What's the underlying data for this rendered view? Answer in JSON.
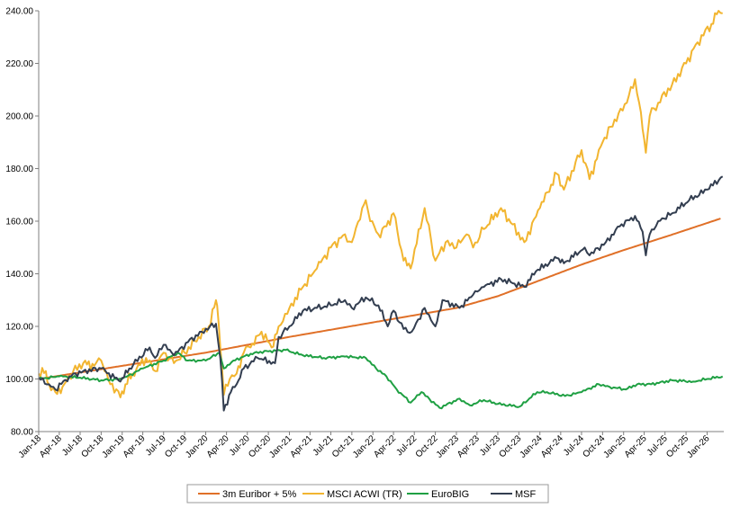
{
  "chart_data": {
    "type": "line",
    "title": "",
    "xlabel": "",
    "ylabel": "",
    "ylim": [
      80,
      240
    ],
    "yticks": [
      "80.00",
      "100.00",
      "120.00",
      "140.00",
      "160.00",
      "180.00",
      "200.00",
      "220.00",
      "240.00"
    ],
    "xticks": [
      "Jan-18",
      "Apr-18",
      "Jul-18",
      "Oct-18",
      "Jan-19",
      "Apr-19",
      "Jul-19",
      "Oct-19",
      "Jan-20",
      "Apr-20",
      "Jul-20",
      "Oct-20",
      "Jan-21",
      "Apr-21",
      "Jul-21",
      "Oct-21",
      "Jan-22",
      "Apr-22",
      "Jul-22",
      "Oct-22",
      "Jan-23",
      "Apr-23",
      "Jul-23",
      "Oct-23",
      "Jan-24",
      "Apr-24",
      "Jul-24",
      "Oct-24",
      "Jan-25",
      "Apr-25",
      "Jul-25",
      "Oct-25",
      "Jan-26"
    ],
    "grid": false,
    "legend_position": "bottom",
    "colors": {
      "axis": "#7f7f7f"
    },
    "series": [
      {
        "name": "3m Euribor + 5%",
        "color": "#e07028",
        "points": [
          [
            "2018-01-01",
            100
          ],
          [
            "2019-01-01",
            105
          ],
          [
            "2020-01-01",
            110
          ],
          [
            "2021-01-01",
            116
          ],
          [
            "2022-01-01",
            121.5
          ],
          [
            "2023-01-01",
            127
          ],
          [
            "2023-07-01",
            131.5
          ],
          [
            "2024-01-01",
            137.5
          ],
          [
            "2024-07-01",
            143.5
          ],
          [
            "2025-01-01",
            149
          ],
          [
            "2025-07-01",
            154
          ],
          [
            "2026-03-01",
            161
          ]
        ]
      },
      {
        "name": "MSCI ACWI (TR)",
        "color": "#f2b530",
        "points": [
          [
            "2018-01-01",
            102
          ],
          [
            "2018-02-01",
            103
          ],
          [
            "2018-02-15",
            98
          ],
          [
            "2018-03-15",
            95
          ],
          [
            "2018-04-15",
            97
          ],
          [
            "2018-06-01",
            103
          ],
          [
            "2018-07-15",
            106
          ],
          [
            "2018-09-01",
            105
          ],
          [
            "2018-10-01",
            107
          ],
          [
            "2018-11-01",
            100
          ],
          [
            "2018-12-24",
            93
          ],
          [
            "2019-01-15",
            98
          ],
          [
            "2019-02-15",
            102
          ],
          [
            "2019-04-15",
            108
          ],
          [
            "2019-05-25",
            103
          ],
          [
            "2019-07-01",
            110
          ],
          [
            "2019-08-15",
            106
          ],
          [
            "2019-10-01",
            110
          ],
          [
            "2019-12-01",
            116
          ],
          [
            "2020-01-15",
            120
          ],
          [
            "2020-02-15",
            130
          ],
          [
            "2020-02-20",
            128
          ],
          [
            "2020-03-05",
            112
          ],
          [
            "2020-03-20",
            94
          ],
          [
            "2020-04-15",
            100
          ],
          [
            "2020-05-15",
            102
          ],
          [
            "2020-06-15",
            110
          ],
          [
            "2020-07-15",
            112
          ],
          [
            "2020-09-01",
            118
          ],
          [
            "2020-10-15",
            112
          ],
          [
            "2020-11-15",
            120
          ],
          [
            "2021-01-01",
            127
          ],
          [
            "2021-03-01",
            135
          ],
          [
            "2021-05-01",
            142
          ],
          [
            "2021-07-01",
            150
          ],
          [
            "2021-09-01",
            155
          ],
          [
            "2021-10-01",
            152
          ],
          [
            "2021-11-15",
            165
          ],
          [
            "2021-12-01",
            168
          ],
          [
            "2021-12-20",
            160
          ],
          [
            "2022-01-25",
            155
          ],
          [
            "2022-03-01",
            158
          ],
          [
            "2022-04-01",
            163
          ],
          [
            "2022-05-15",
            145
          ],
          [
            "2022-06-15",
            142
          ],
          [
            "2022-08-15",
            165
          ],
          [
            "2022-10-01",
            145
          ],
          [
            "2022-11-15",
            152
          ],
          [
            "2023-01-01",
            150
          ],
          [
            "2023-02-15",
            155
          ],
          [
            "2023-03-15",
            150
          ],
          [
            "2023-05-01",
            157
          ],
          [
            "2023-07-15",
            165
          ],
          [
            "2023-10-25",
            152
          ],
          [
            "2024-01-01",
            165
          ],
          [
            "2024-03-15",
            178
          ],
          [
            "2024-04-15",
            172
          ],
          [
            "2024-07-01",
            187
          ],
          [
            "2024-08-05",
            176
          ],
          [
            "2024-10-01",
            190
          ],
          [
            "2024-12-10",
            201
          ],
          [
            "2025-01-15",
            205
          ],
          [
            "2025-02-20",
            214
          ],
          [
            "2025-03-10",
            205
          ],
          [
            "2025-03-25",
            195
          ],
          [
            "2025-04-08",
            186
          ],
          [
            "2025-04-25",
            200
          ],
          [
            "2025-06-01",
            205
          ],
          [
            "2025-08-01",
            212
          ],
          [
            "2025-10-01",
            220
          ],
          [
            "2025-11-20",
            228
          ],
          [
            "2026-01-20",
            235
          ],
          [
            "2026-02-20",
            240
          ],
          [
            "2026-03-10",
            239
          ]
        ]
      },
      {
        "name": "EuroBIG",
        "color": "#1fa043",
        "points": [
          [
            "2018-01-01",
            100
          ],
          [
            "2018-04-01",
            101
          ],
          [
            "2018-07-01",
            100.5
          ],
          [
            "2018-10-01",
            99.5
          ],
          [
            "2019-01-01",
            100
          ],
          [
            "2019-04-01",
            104
          ],
          [
            "2019-07-01",
            107
          ],
          [
            "2019-09-01",
            110
          ],
          [
            "2019-10-15",
            107
          ],
          [
            "2020-01-01",
            107
          ],
          [
            "2020-03-01",
            110
          ],
          [
            "2020-03-20",
            104
          ],
          [
            "2020-05-01",
            107
          ],
          [
            "2020-08-01",
            110
          ],
          [
            "2020-10-01",
            110.5
          ],
          [
            "2020-12-15",
            111
          ],
          [
            "2021-03-01",
            109
          ],
          [
            "2021-06-01",
            108
          ],
          [
            "2021-09-01",
            108.5
          ],
          [
            "2021-12-01",
            108
          ],
          [
            "2022-01-15",
            104
          ],
          [
            "2022-03-01",
            101
          ],
          [
            "2022-04-15",
            96
          ],
          [
            "2022-06-15",
            91
          ],
          [
            "2022-08-01",
            95
          ],
          [
            "2022-10-20",
            89
          ],
          [
            "2023-01-15",
            92.5
          ],
          [
            "2023-03-01",
            90
          ],
          [
            "2023-05-01",
            92
          ],
          [
            "2023-07-01",
            90.5
          ],
          [
            "2023-10-05",
            89.5
          ],
          [
            "2023-12-20",
            95
          ],
          [
            "2024-02-01",
            95
          ],
          [
            "2024-04-20",
            93.5
          ],
          [
            "2024-07-01",
            95
          ],
          [
            "2024-09-15",
            98
          ],
          [
            "2024-11-01",
            97
          ],
          [
            "2025-01-10",
            96
          ],
          [
            "2025-03-01",
            98
          ],
          [
            "2025-05-01",
            98
          ],
          [
            "2025-08-01",
            99.5
          ],
          [
            "2025-11-01",
            99
          ],
          [
            "2026-01-01",
            100
          ],
          [
            "2026-03-10",
            101
          ]
        ]
      },
      {
        "name": "MSF",
        "color": "#333e50",
        "points": [
          [
            "2018-01-01",
            100.5
          ],
          [
            "2018-02-15",
            98
          ],
          [
            "2018-03-15",
            96
          ],
          [
            "2018-05-15",
            101
          ],
          [
            "2018-07-15",
            103
          ],
          [
            "2018-10-01",
            104
          ],
          [
            "2018-12-24",
            99
          ],
          [
            "2019-02-01",
            104
          ],
          [
            "2019-05-01",
            112
          ],
          [
            "2019-05-25",
            108
          ],
          [
            "2019-07-01",
            113
          ],
          [
            "2019-08-15",
            109
          ],
          [
            "2019-10-15",
            114
          ],
          [
            "2019-12-15",
            118
          ],
          [
            "2020-02-15",
            121
          ],
          [
            "2020-03-05",
            108
          ],
          [
            "2020-03-20",
            88
          ],
          [
            "2020-04-20",
            95
          ],
          [
            "2020-05-15",
            98
          ],
          [
            "2020-06-15",
            104
          ],
          [
            "2020-08-15",
            108
          ],
          [
            "2020-10-30",
            106
          ],
          [
            "2020-11-15",
            116
          ],
          [
            "2021-01-01",
            120
          ],
          [
            "2021-03-01",
            126
          ],
          [
            "2021-05-01",
            127
          ],
          [
            "2021-07-01",
            128
          ],
          [
            "2021-09-01",
            130
          ],
          [
            "2021-10-01",
            127
          ],
          [
            "2021-12-01",
            131
          ],
          [
            "2022-01-25",
            128
          ],
          [
            "2022-03-07",
            120
          ],
          [
            "2022-04-01",
            126
          ],
          [
            "2022-05-15",
            119
          ],
          [
            "2022-06-20",
            118
          ],
          [
            "2022-08-15",
            127
          ],
          [
            "2022-10-01",
            120
          ],
          [
            "2022-11-01",
            130
          ],
          [
            "2023-01-15",
            127
          ],
          [
            "2023-03-15",
            132
          ],
          [
            "2023-05-01",
            135
          ],
          [
            "2023-07-15",
            138
          ],
          [
            "2023-10-25",
            135
          ],
          [
            "2023-12-15",
            141
          ],
          [
            "2024-03-15",
            146
          ],
          [
            "2024-04-15",
            144
          ],
          [
            "2024-07-15",
            150
          ],
          [
            "2024-08-05",
            147
          ],
          [
            "2024-10-15",
            152
          ],
          [
            "2024-12-15",
            158
          ],
          [
            "2025-02-20",
            162
          ],
          [
            "2025-03-25",
            156
          ],
          [
            "2025-04-08",
            147
          ],
          [
            "2025-04-25",
            155
          ],
          [
            "2025-06-01",
            160
          ],
          [
            "2025-08-01",
            163
          ],
          [
            "2025-10-15",
            168
          ],
          [
            "2026-01-01",
            172
          ],
          [
            "2026-03-10",
            177
          ]
        ]
      }
    ]
  }
}
